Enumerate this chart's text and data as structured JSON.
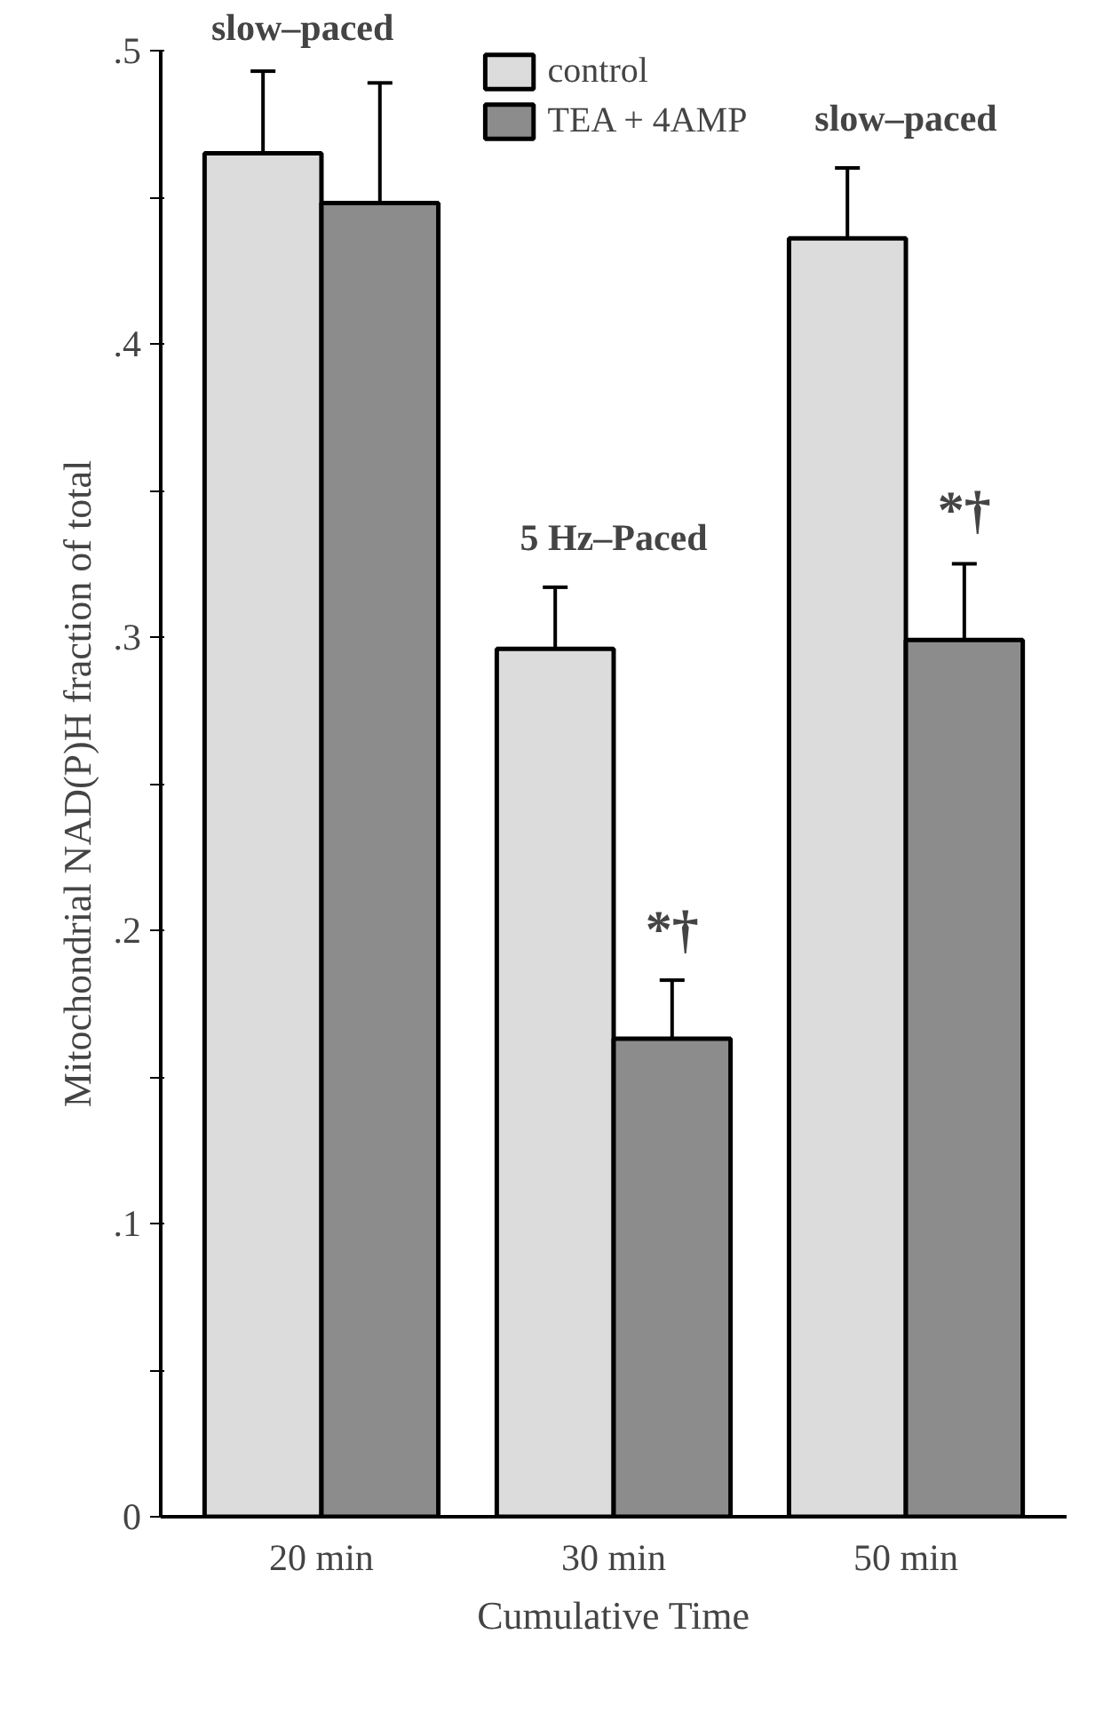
{
  "chart_data": {
    "type": "bar",
    "xlabel": "Cumulative Time",
    "ylabel": "Mitochondrial NAD(P)H fraction of total",
    "categories": [
      "20 min",
      "30 min",
      "50 min"
    ],
    "series": [
      {
        "name": "control",
        "color": "#dcdcdc",
        "values": [
          0.465,
          0.296,
          0.436
        ],
        "errors": [
          [
            0.465,
            0.493
          ],
          [
            0.296,
            0.317
          ],
          [
            0.436,
            0.46
          ]
        ]
      },
      {
        "name": "TEA + 4AMP",
        "color": "#8c8c8c",
        "values": [
          0.448,
          0.163,
          0.299
        ],
        "errors": [
          [
            0.448,
            0.489
          ],
          [
            0.163,
            0.183
          ],
          [
            0.299,
            0.325
          ]
        ]
      }
    ],
    "ylim": [
      0,
      0.5
    ],
    "yticks": [
      {
        "value": 0,
        "label": "0"
      },
      {
        "value": 0.05,
        "label": null
      },
      {
        "value": 0.1,
        "label": ".1"
      },
      {
        "value": 0.15,
        "label": null
      },
      {
        "value": 0.2,
        "label": ".2"
      },
      {
        "value": 0.25,
        "label": null
      },
      {
        "value": 0.3,
        "label": ".3"
      },
      {
        "value": 0.35,
        "label": null
      },
      {
        "value": 0.4,
        "label": ".4"
      },
      {
        "value": 0.45,
        "label": null
      },
      {
        "value": 0.5,
        "label": ".5"
      }
    ],
    "annotations": [
      "slow–paced",
      "5 Hz–Paced",
      "slow–paced",
      {
        "text": "*†",
        "x": "30 min",
        "y": 0.19
      },
      {
        "text": "*†",
        "x": "50 min",
        "y": 0.333
      }
    ],
    "legend": "top",
    "grid": false
  }
}
